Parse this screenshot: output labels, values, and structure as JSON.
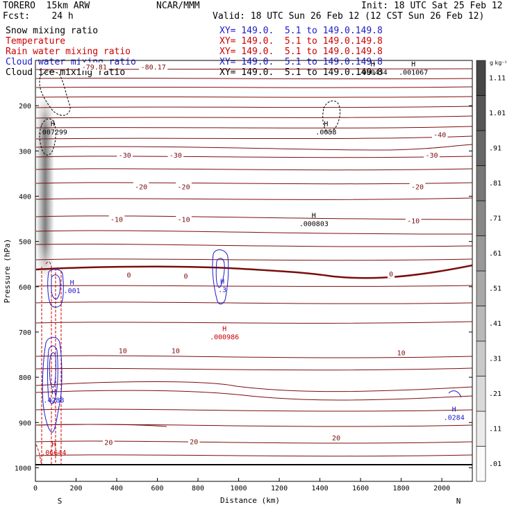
{
  "header": {
    "model": "TORERO  15km ARW",
    "center": "NCAR/MMM",
    "init": "Init: 18 UTC Sat 25 Feb 12",
    "fcst": "Fcst:    24 h",
    "valid": "Valid: 18 UTC Sun 26 Feb 12 (12 CST Sun 26 Feb 12)"
  },
  "fields": [
    {
      "name": "Snow mixing ratio",
      "xy": "XY= 149.0.  5.1 to 149.0.149.8",
      "color": "#000000"
    },
    {
      "name": "Temperature",
      "xy": "XY= 149.0.  5.1 to 149.0.149.8",
      "color": "#cc0000"
    },
    {
      "name": "Rain water mixing ratio",
      "xy": "XY= 149.0.  5.1 to 149.0.149.8",
      "color": "#cc0000"
    },
    {
      "name": "Cloud water mixing ratio",
      "xy": "XY= 149.0.  5.1 to 149.0.149.8",
      "color": "#1a1acc"
    },
    {
      "name": "Cloud ice mixing ratio",
      "xy": "XY= 149.0.  5.1 to 149.0.149.8",
      "color": "#000000"
    }
  ],
  "chart_data": {
    "type": "contour-cross-section",
    "xlabel": "Distance (km)",
    "ylabel": "Pressure (hPa)",
    "xlim": [
      0,
      2150
    ],
    "ylim": [
      1030,
      100
    ],
    "x_ticks": [
      0,
      200,
      400,
      600,
      800,
      1000,
      1200,
      1400,
      1600,
      1800,
      2000
    ],
    "y_ticks": [
      200,
      300,
      400,
      500,
      600,
      700,
      800,
      900,
      1000
    ],
    "endpoints": {
      "left": "S",
      "right": "N"
    },
    "colorbar": {
      "unit": "g kg⁻¹",
      "levels": [
        ".01",
        ".11",
        ".21",
        ".31",
        ".41",
        ".51",
        ".61",
        ".71",
        ".81",
        ".91",
        "1.01",
        "1.11"
      ]
    },
    "temperature_labels": [
      {
        "text": "-79.81",
        "x": 290,
        "p": 115
      },
      {
        "text": "-80.17",
        "x": 580,
        "p": 115
      },
      {
        "text": "-40",
        "x": 1990,
        "p": 265
      },
      {
        "text": "-30",
        "x": 440,
        "p": 310
      },
      {
        "text": "-30",
        "x": 690,
        "p": 310
      },
      {
        "text": "-30",
        "x": 1950,
        "p": 310
      },
      {
        "text": "-20",
        "x": 520,
        "p": 380
      },
      {
        "text": "-20",
        "x": 730,
        "p": 380
      },
      {
        "text": "-20",
        "x": 1880,
        "p": 380
      },
      {
        "text": "-10",
        "x": 400,
        "p": 452
      },
      {
        "text": "-10",
        "x": 730,
        "p": 452
      },
      {
        "text": "-10",
        "x": 1860,
        "p": 455
      },
      {
        "text": "0",
        "x": 460,
        "p": 575
      },
      {
        "text": "0",
        "x": 740,
        "p": 577
      },
      {
        "text": "0",
        "x": 1750,
        "p": 573
      },
      {
        "text": "10",
        "x": 430,
        "p": 742
      },
      {
        "text": "10",
        "x": 690,
        "p": 742
      },
      {
        "text": "10",
        "x": 1800,
        "p": 747
      },
      {
        "text": "20",
        "x": 360,
        "p": 945
      },
      {
        "text": "20",
        "x": 780,
        "p": 943
      },
      {
        "text": "20",
        "x": 1480,
        "p": 935
      }
    ],
    "maxima": [
      {
        "value": ".007299",
        "x": 85,
        "p": 250,
        "color": "#000000"
      },
      {
        "value": ".0058",
        "x": 1430,
        "p": 250,
        "color": "#000000"
      },
      {
        "value": ".000434",
        "x": 1660,
        "p": 118,
        "color": "#000000"
      },
      {
        "value": ".001067",
        "x": 1860,
        "p": 118,
        "color": "#000000"
      },
      {
        "value": ".000803",
        "x": 1370,
        "p": 452,
        "color": "#000000"
      },
      {
        "value": ".001",
        "x": 180,
        "p": 600,
        "color": "#1a1acc"
      },
      {
        "value": ".3",
        "x": 920,
        "p": 598,
        "color": "#1a1acc"
      },
      {
        "value": ".000986",
        "x": 930,
        "p": 702,
        "color": "#cc0000"
      },
      {
        "value": ".4288",
        "x": 90,
        "p": 842,
        "color": "#1a1acc"
      },
      {
        "value": ".0284",
        "x": 2060,
        "p": 880,
        "color": "#1a1acc"
      },
      {
        "value": ".06644",
        "x": 90,
        "p": 958,
        "color": "#cc0000"
      }
    ]
  }
}
